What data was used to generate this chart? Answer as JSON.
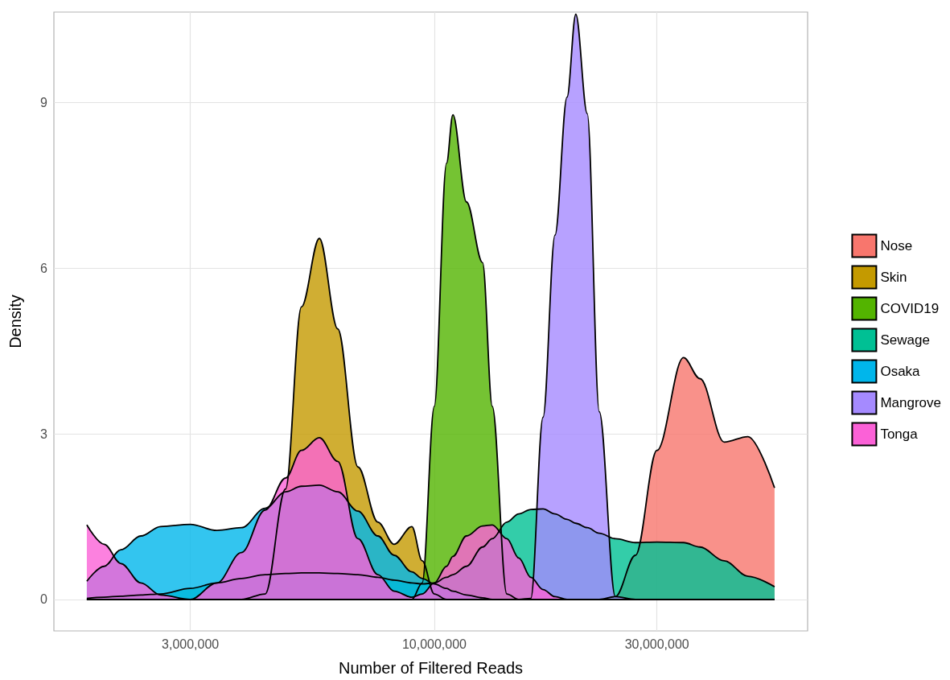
{
  "chart_data": {
    "type": "area",
    "xlabel": "Number of Filtered Reads",
    "ylabel": "Density",
    "x": [
      1800000,
      1960000,
      2130000,
      2350000,
      2590000,
      3000000,
      3420000,
      3860000,
      4340000,
      4800000,
      5190000,
      5670000,
      6210000,
      6860000,
      7570000,
      8200000,
      8950000,
      9420000,
      10000000,
      10620000,
      10960000,
      11720000,
      12690000,
      13310000,
      14300000,
      15170000,
      16100000,
      17100000,
      18140000,
      19250000,
      20100000,
      21270000,
      22570000,
      24430000,
      26980000,
      30000000,
      34200000,
      37100000,
      41800000,
      47000000,
      53600000
    ],
    "series": [
      {
        "name": "Nose",
        "color": "#f8766d",
        "values": [
          0,
          0,
          0,
          0,
          0,
          0,
          0,
          0,
          0,
          0,
          0,
          0,
          0,
          0,
          0,
          0,
          0,
          0,
          0,
          0,
          0,
          0,
          0,
          0,
          0,
          0,
          0,
          0,
          0,
          0,
          0,
          0,
          0,
          0.05,
          0.8,
          2.7,
          4.38,
          4.0,
          2.85,
          2.95,
          2.02
        ]
      },
      {
        "name": "Skin",
        "color": "#c49a00",
        "values": [
          0,
          0,
          0,
          0,
          0,
          0,
          0,
          0,
          0.1,
          2.0,
          5.3,
          6.54,
          4.9,
          2.4,
          1.4,
          1.0,
          1.32,
          0.7,
          0.1,
          0,
          0,
          0,
          0,
          0,
          0,
          0,
          0,
          0,
          0,
          0,
          0,
          0,
          0,
          0,
          0,
          0,
          0,
          0,
          0,
          0,
          0
        ]
      },
      {
        "name": "COVID19",
        "color": "#53b400",
        "values": [
          0,
          0,
          0,
          0,
          0,
          0,
          0,
          0,
          0,
          0,
          0,
          0,
          0,
          0,
          0,
          0,
          0,
          0.3,
          3.5,
          7.9,
          8.78,
          7.2,
          6.1,
          3.5,
          0.1,
          0,
          0,
          0,
          0,
          0,
          0,
          0,
          0,
          0,
          0,
          0,
          0,
          0,
          0,
          0,
          0
        ]
      },
      {
        "name": "Sewage",
        "color": "#00c094",
        "values": [
          0.02,
          0.04,
          0.06,
          0.08,
          0.1,
          0.2,
          0.3,
          0.38,
          0.45,
          0.47,
          0.48,
          0.48,
          0.47,
          0.45,
          0.4,
          0.35,
          0.3,
          0.28,
          0.3,
          0.4,
          0.45,
          0.6,
          0.95,
          1.1,
          1.4,
          1.55,
          1.63,
          1.64,
          1.55,
          1.45,
          1.38,
          1.3,
          1.2,
          1.1,
          1.03,
          1.04,
          1.03,
          0.95,
          0.7,
          0.42,
          0.23
        ]
      },
      {
        "name": "Osaka",
        "color": "#00b6eb",
        "values": [
          0.33,
          0.6,
          0.9,
          1.15,
          1.32,
          1.36,
          1.25,
          1.3,
          1.65,
          1.95,
          2.05,
          2.07,
          1.95,
          1.6,
          1.15,
          0.8,
          0.5,
          0.38,
          0.28,
          0.2,
          0.15,
          0.08,
          0.03,
          0,
          0,
          0,
          0,
          0,
          0,
          0,
          0,
          0,
          0,
          0,
          0,
          0,
          0,
          0,
          0,
          0,
          0
        ]
      },
      {
        "name": "Mangrove",
        "color": "#a58aff",
        "values": [
          0,
          0,
          0,
          0,
          0,
          0,
          0,
          0,
          0,
          0,
          0,
          0,
          0,
          0,
          0,
          0,
          0,
          0,
          0,
          0,
          0,
          0,
          0,
          0,
          0,
          0,
          0.02,
          3.3,
          6.6,
          9.1,
          10.6,
          8.8,
          3.4,
          0.05,
          0,
          0,
          0,
          0,
          0,
          0,
          0
        ]
      },
      {
        "name": "Tonga",
        "color": "#fb61d7",
        "values": [
          1.35,
          1.0,
          0.65,
          0.3,
          0.08,
          0,
          0.3,
          0.85,
          1.62,
          2.2,
          2.7,
          2.93,
          2.5,
          1.1,
          0.45,
          0.15,
          0.04,
          0.1,
          0.3,
          0.6,
          0.78,
          1.15,
          1.33,
          1.35,
          1.1,
          0.75,
          0.4,
          0.18,
          0.05,
          0,
          0,
          0,
          0,
          0,
          0,
          0,
          0,
          0,
          0,
          0,
          0
        ]
      }
    ],
    "xlim": [
      1530000,
      63100000
    ],
    "xticks": [
      {
        "value": 3000000,
        "label": "3,000,000"
      },
      {
        "value": 10000000,
        "label": "10,000,000"
      },
      {
        "value": 30000000,
        "label": "30,000,000"
      }
    ],
    "ylim": [
      -0.57,
      10.64
    ],
    "yticks": [
      0,
      3,
      6,
      9
    ],
    "log": "x",
    "grid": true,
    "legend": "right"
  }
}
